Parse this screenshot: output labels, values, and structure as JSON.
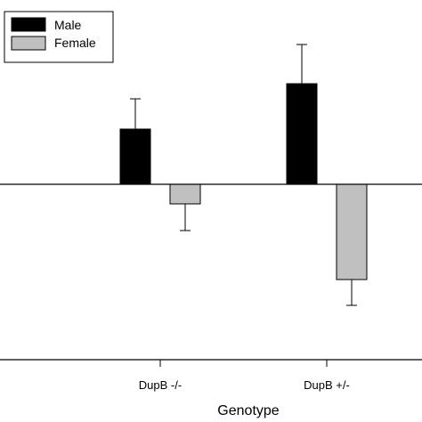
{
  "chart_data": {
    "type": "bar",
    "title": "",
    "xlabel": "Genotype",
    "ylabel": "",
    "categories": [
      "DupB -/-",
      "DupB +/-"
    ],
    "series": [
      {
        "name": "Male",
        "color": "#000000",
        "values": [
          62,
          113
        ],
        "errors": [
          34,
          44
        ]
      },
      {
        "name": "Female",
        "color": "#c0c0c0",
        "values": [
          -22,
          -107
        ],
        "errors": [
          30,
          29
        ]
      }
    ],
    "ylim": [
      -197,
      207
    ],
    "zero_line": true,
    "grid": false,
    "legend_position": "top-left"
  }
}
